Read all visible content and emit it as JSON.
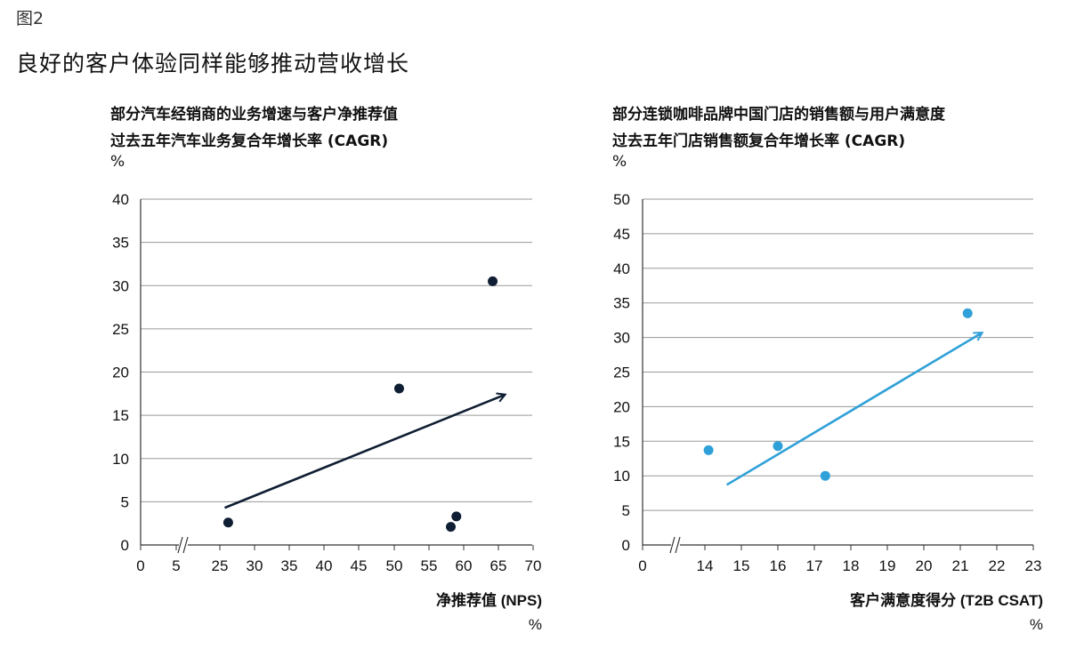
{
  "figure_label": "图2",
  "title": "良好的客户体验同样能够推动营收增长",
  "chart_data": [
    {
      "type": "scatter",
      "title": "部分汽车经销商的业务增速与客户净推荐值",
      "subtitle": "过去五年汽车业务复合年增长率 (CAGR)",
      "y_unit": "%",
      "xlabel": "净推荐值 (NPS)",
      "x_unit": "%",
      "ylim": [
        0,
        40
      ],
      "yticks": [
        0,
        5,
        10,
        15,
        20,
        25,
        30,
        35,
        40
      ],
      "xtick_labels": [
        "0",
        "5",
        "25",
        "30",
        "35",
        "40",
        "45",
        "50",
        "55",
        "60",
        "65",
        "70"
      ],
      "axis_break": true,
      "grid": true,
      "color": "#0f1e33",
      "points": [
        {
          "x": 26.2,
          "y": 2.6
        },
        {
          "x": 50.7,
          "y": 18.1
        },
        {
          "x": 58.1,
          "y": 2.1
        },
        {
          "x": 58.9,
          "y": 3.3
        },
        {
          "x": 64.1,
          "y": 30.5
        }
      ],
      "trend_arrow": {
        "from": [
          25.7,
          4.3
        ],
        "to": [
          65.9,
          17.4
        ]
      }
    },
    {
      "type": "scatter",
      "title": "部分连锁咖啡品牌中国门店的销售额与用户满意度",
      "subtitle": "过去五年门店销售额复合年增长率 (CAGR)",
      "y_unit": "%",
      "xlabel": "客户满意度得分 (T2B CSAT)",
      "x_unit": "%",
      "ylim": [
        0,
        50
      ],
      "yticks": [
        0,
        5,
        10,
        15,
        20,
        25,
        30,
        35,
        40,
        45,
        50
      ],
      "xtick_labels": [
        "0",
        "14",
        "15",
        "16",
        "17",
        "18",
        "19",
        "20",
        "21",
        "22",
        "23"
      ],
      "axis_break": true,
      "grid": true,
      "color": "#2fa0d8",
      "points": [
        {
          "x": 14.1,
          "y": 13.7
        },
        {
          "x": 16.0,
          "y": 14.3
        },
        {
          "x": 17.3,
          "y": 10.0
        },
        {
          "x": 21.2,
          "y": 33.5
        }
      ],
      "trend_arrow": {
        "from": [
          14.6,
          8.7
        ],
        "to": [
          21.6,
          30.7
        ]
      }
    }
  ]
}
